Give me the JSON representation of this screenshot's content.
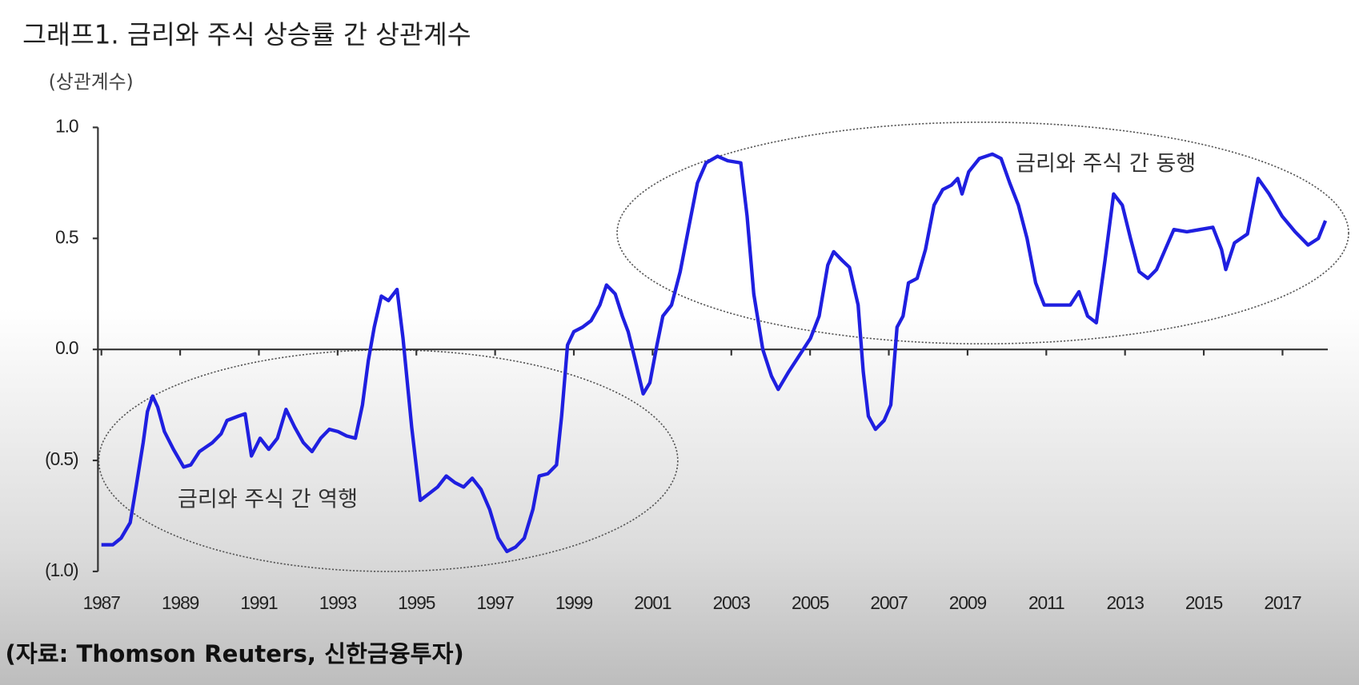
{
  "chart_data": {
    "type": "line",
    "title": "그래프1. 금리와 주식 상승률 간 상관계수",
    "y_unit": "(상관계수)",
    "source": "(자료: Thomson Reuters, 신한금융투자)",
    "annotations": [
      "금리와 주식 간 역행",
      "금리와 주식 간 동행"
    ],
    "xlim": [
      1987,
      2018.15
    ],
    "ylim": [
      -1,
      1
    ],
    "xticks": [
      1987,
      1989,
      1991,
      1993,
      1995,
      1997,
      1999,
      2001,
      2003,
      2005,
      2007,
      2009,
      2011,
      2013,
      2015,
      2017
    ],
    "yticks": [
      {
        "value": 1,
        "label": "1.0"
      },
      0.5,
      {
        "value": 0,
        "label": "0.0"
      },
      {
        "value": -0.5,
        "label": "(0.5)"
      },
      {
        "value": -1,
        "label": "(1.0)"
      }
    ],
    "series": [
      {
        "color": "#1f1fe0",
        "x": [
          1987.0,
          1987.29,
          1987.5,
          1987.73,
          1987.88,
          1988.06,
          1988.17,
          1988.3,
          1988.43,
          1988.6,
          1988.83,
          1989.09,
          1989.27,
          1989.49,
          1989.82,
          1990.04,
          1990.19,
          1990.48,
          1990.65,
          1990.81,
          1991.03,
          1991.25,
          1991.47,
          1991.69,
          1991.91,
          1992.13,
          1992.35,
          1992.57,
          1992.79,
          1993.01,
          1993.23,
          1993.45,
          1993.63,
          1993.78,
          1993.93,
          1994.11,
          1994.29,
          1994.51,
          1994.66,
          1994.88,
          1995.1,
          1995.32,
          1995.54,
          1995.76,
          1995.98,
          1996.2,
          1996.42,
          1996.64,
          1996.86,
          1997.08,
          1997.3,
          1997.52,
          1997.74,
          1997.96,
          1998.12,
          1998.34,
          1998.56,
          1998.69,
          1998.84,
          1999.0,
          1999.22,
          1999.44,
          1999.66,
          1999.83,
          2000.05,
          2000.23,
          2000.38,
          2000.56,
          2000.76,
          2000.93,
          2001.11,
          2001.26,
          2001.48,
          2001.7,
          2001.92,
          2002.14,
          2002.36,
          2002.65,
          2002.91,
          2003.24,
          2003.4,
          2003.57,
          2003.8,
          2004.02,
          2004.19,
          2004.46,
          2004.68,
          2005.01,
          2005.23,
          2005.45,
          2005.6,
          2005.82,
          2006.0,
          2006.22,
          2006.35,
          2006.48,
          2006.66,
          2006.88,
          2007.05,
          2007.21,
          2007.36,
          2007.5,
          2007.72,
          2007.93,
          2008.15,
          2008.37,
          2008.59,
          2008.75,
          2008.86,
          2009.03,
          2009.3,
          2009.63,
          2009.85,
          2010.07,
          2010.29,
          2010.51,
          2010.73,
          2010.95,
          2011.28,
          2011.61,
          2011.83,
          2012.05,
          2012.27,
          2012.49,
          2012.71,
          2012.93,
          2013.14,
          2013.36,
          2013.58,
          2013.8,
          2014.02,
          2014.24,
          2014.57,
          2014.9,
          2015.23,
          2015.45,
          2015.56,
          2015.78,
          2016.11,
          2016.38,
          2016.66,
          2016.99,
          2017.32,
          2017.65,
          2017.91,
          2018.09
        ],
        "values": [
          -0.88,
          -0.88,
          -0.85,
          -0.78,
          -0.62,
          -0.42,
          -0.28,
          -0.21,
          -0.26,
          -0.37,
          -0.45,
          -0.53,
          -0.52,
          -0.46,
          -0.42,
          -0.38,
          -0.32,
          -0.3,
          -0.29,
          -0.48,
          -0.4,
          -0.45,
          -0.4,
          -0.27,
          -0.35,
          -0.42,
          -0.46,
          -0.4,
          -0.36,
          -0.37,
          -0.39,
          -0.4,
          -0.25,
          -0.05,
          0.1,
          0.24,
          0.22,
          0.27,
          0.05,
          -0.35,
          -0.68,
          -0.65,
          -0.62,
          -0.57,
          -0.6,
          -0.62,
          -0.58,
          -0.63,
          -0.72,
          -0.85,
          -0.91,
          -0.89,
          -0.85,
          -0.72,
          -0.57,
          -0.56,
          -0.52,
          -0.3,
          0.02,
          0.08,
          0.1,
          0.13,
          0.2,
          0.29,
          0.25,
          0.15,
          0.08,
          -0.05,
          -0.2,
          -0.15,
          0.02,
          0.15,
          0.2,
          0.35,
          0.55,
          0.75,
          0.84,
          0.87,
          0.85,
          0.84,
          0.6,
          0.25,
          0.0,
          -0.12,
          -0.18,
          -0.1,
          -0.04,
          0.05,
          0.15,
          0.38,
          0.44,
          0.4,
          0.37,
          0.2,
          -0.1,
          -0.3,
          -0.36,
          -0.32,
          -0.25,
          0.1,
          0.15,
          0.3,
          0.32,
          0.45,
          0.65,
          0.72,
          0.74,
          0.77,
          0.7,
          0.8,
          0.86,
          0.88,
          0.86,
          0.75,
          0.65,
          0.5,
          0.3,
          0.2,
          0.2,
          0.2,
          0.26,
          0.15,
          0.12,
          0.4,
          0.7,
          0.65,
          0.5,
          0.35,
          0.32,
          0.36,
          0.45,
          0.54,
          0.53,
          0.54,
          0.55,
          0.45,
          0.36,
          0.48,
          0.52,
          0.77,
          0.7,
          0.6,
          0.53,
          0.47,
          0.5,
          0.58
        ]
      }
    ]
  }
}
